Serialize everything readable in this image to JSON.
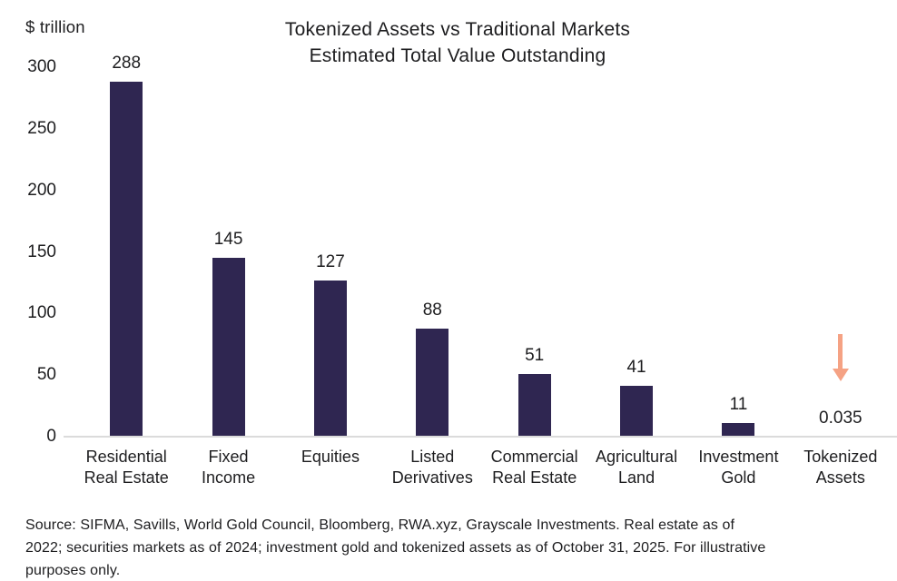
{
  "chart_data": {
    "type": "bar",
    "title": "Tokenized Assets vs Traditional Markets",
    "subtitle": "Estimated Total Value Outstanding",
    "unit": "$ trillion",
    "categories": [
      "Residential\nReal Estate",
      "Fixed\nIncome",
      "Equities",
      "Listed\nDerivatives",
      "Commercial\nReal Estate",
      "Agricultural\nLand",
      "Investment\nGold",
      "Tokenized\nAssets"
    ],
    "values": [
      288,
      145,
      127,
      88,
      51,
      41,
      11,
      0.035
    ],
    "value_labels": [
      "288",
      "145",
      "127",
      "88",
      "51",
      "41",
      "11",
      "0.035"
    ],
    "y_ticks": [
      300,
      250,
      200,
      150,
      100,
      50,
      0
    ],
    "ylim": [
      0,
      300
    ],
    "grid": false,
    "legend": "none",
    "bar_color_hex": "#2F2651",
    "axis_line_color_hex": "#DBDBDB",
    "annotation": {
      "type": "down-arrow",
      "category": "Tokenized\nAssets",
      "category_index": 7,
      "color_hex": "#F5A284"
    }
  },
  "footer": {
    "source_text": "Source: SIFMA, Savills, World Gold Council, Bloomberg, RWA.xyz, Grayscale Investments. Real estate as of 2022; securities markets as of 2024; investment gold and tokenized assets as of October 31, 2025. For illustrative purposes only."
  }
}
